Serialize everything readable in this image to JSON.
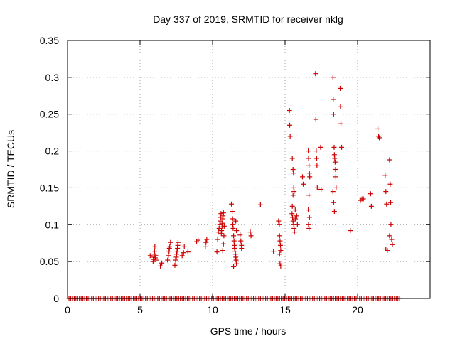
{
  "chart_data": {
    "type": "scatter",
    "title": "Day 337 of 2019, SRMTID for receiver nklg",
    "xlabel": "GPS time / hours",
    "ylabel": "SRMTID / TECUs",
    "xlim": [
      0,
      25
    ],
    "ylim": [
      0,
      0.35
    ],
    "xticks": [
      0,
      5,
      10,
      15,
      20
    ],
    "yticks": [
      0,
      0.05,
      0.1,
      0.15,
      0.2,
      0.25,
      0.3,
      0.35
    ],
    "ytick_labels": [
      "0",
      "0.05",
      "0.1",
      "0.15",
      "0.2",
      "0.25",
      "0.3",
      "0.35"
    ],
    "grid": true,
    "marker": "plus",
    "color": "#cc0000",
    "baseline": {
      "y": 0,
      "x_start": 0.1,
      "x_end": 22.9,
      "step": 0.12
    },
    "points": [
      [
        5.7,
        0.058
      ],
      [
        5.9,
        0.05
      ],
      [
        5.92,
        0.053
      ],
      [
        5.95,
        0.056
      ],
      [
        5.98,
        0.06
      ],
      [
        6.0,
        0.064
      ],
      [
        6.02,
        0.07
      ],
      [
        6.05,
        0.055
      ],
      [
        6.08,
        0.058
      ],
      [
        6.1,
        0.052
      ],
      [
        6.4,
        0.044
      ],
      [
        6.5,
        0.048
      ],
      [
        6.9,
        0.052
      ],
      [
        6.95,
        0.058
      ],
      [
        7.0,
        0.064
      ],
      [
        7.02,
        0.068
      ],
      [
        7.05,
        0.07
      ],
      [
        7.1,
        0.076
      ],
      [
        7.4,
        0.045
      ],
      [
        7.45,
        0.052
      ],
      [
        7.5,
        0.056
      ],
      [
        7.52,
        0.06
      ],
      [
        7.55,
        0.064
      ],
      [
        7.58,
        0.068
      ],
      [
        7.6,
        0.072
      ],
      [
        7.62,
        0.076
      ],
      [
        7.9,
        0.058
      ],
      [
        8.0,
        0.062
      ],
      [
        8.05,
        0.07
      ],
      [
        8.3,
        0.063
      ],
      [
        8.9,
        0.077
      ],
      [
        9.0,
        0.079
      ],
      [
        9.5,
        0.07
      ],
      [
        9.55,
        0.076
      ],
      [
        9.6,
        0.08
      ],
      [
        10.3,
        0.063
      ],
      [
        10.35,
        0.08
      ],
      [
        10.4,
        0.09
      ],
      [
        10.45,
        0.095
      ],
      [
        10.5,
        0.1
      ],
      [
        10.52,
        0.105
      ],
      [
        10.55,
        0.11
      ],
      [
        10.58,
        0.115
      ],
      [
        10.6,
        0.088
      ],
      [
        10.62,
        0.092
      ],
      [
        10.65,
        0.097
      ],
      [
        10.68,
        0.102
      ],
      [
        10.7,
        0.108
      ],
      [
        10.72,
        0.112
      ],
      [
        10.75,
        0.116
      ],
      [
        10.78,
        0.085
      ],
      [
        10.8,
        0.098
      ],
      [
        10.7,
        0.065
      ],
      [
        10.75,
        0.074
      ],
      [
        11.3,
        0.128
      ],
      [
        11.35,
        0.118
      ],
      [
        11.38,
        0.108
      ],
      [
        11.4,
        0.1
      ],
      [
        11.42,
        0.095
      ],
      [
        11.45,
        0.085
      ],
      [
        11.48,
        0.078
      ],
      [
        11.5,
        0.072
      ],
      [
        11.52,
        0.068
      ],
      [
        11.55,
        0.064
      ],
      [
        11.58,
        0.06
      ],
      [
        11.6,
        0.056
      ],
      [
        11.62,
        0.052
      ],
      [
        11.65,
        0.047
      ],
      [
        11.45,
        0.043
      ],
      [
        11.6,
        0.105
      ],
      [
        11.65,
        0.092
      ],
      [
        11.9,
        0.086
      ],
      [
        11.95,
        0.078
      ],
      [
        12.0,
        0.072
      ],
      [
        12.0,
        0.068
      ],
      [
        12.6,
        0.09
      ],
      [
        12.65,
        0.085
      ],
      [
        13.3,
        0.127
      ],
      [
        14.2,
        0.064
      ],
      [
        14.55,
        0.105
      ],
      [
        14.6,
        0.1
      ],
      [
        14.62,
        0.085
      ],
      [
        14.65,
        0.078
      ],
      [
        14.68,
        0.072
      ],
      [
        14.7,
        0.065
      ],
      [
        14.62,
        0.06
      ],
      [
        14.65,
        0.047
      ],
      [
        14.7,
        0.044
      ],
      [
        15.3,
        0.255
      ],
      [
        15.32,
        0.235
      ],
      [
        15.35,
        0.22
      ],
      [
        15.5,
        0.19
      ],
      [
        15.55,
        0.175
      ],
      [
        15.58,
        0.17
      ],
      [
        15.6,
        0.15
      ],
      [
        15.62,
        0.145
      ],
      [
        15.55,
        0.14
      ],
      [
        15.5,
        0.125
      ],
      [
        15.48,
        0.115
      ],
      [
        15.52,
        0.11
      ],
      [
        15.55,
        0.105
      ],
      [
        15.6,
        0.1
      ],
      [
        15.62,
        0.095
      ],
      [
        15.65,
        0.09
      ],
      [
        15.7,
        0.12
      ],
      [
        15.72,
        0.108
      ],
      [
        15.8,
        0.112
      ],
      [
        15.85,
        0.1
      ],
      [
        16.2,
        0.165
      ],
      [
        16.25,
        0.155
      ],
      [
        16.6,
        0.2
      ],
      [
        16.62,
        0.19
      ],
      [
        16.65,
        0.18
      ],
      [
        16.68,
        0.17
      ],
      [
        16.7,
        0.165
      ],
      [
        16.65,
        0.14
      ],
      [
        16.6,
        0.12
      ],
      [
        16.62,
        0.1
      ],
      [
        16.65,
        0.095
      ],
      [
        16.68,
        0.11
      ],
      [
        17.1,
        0.305
      ],
      [
        17.12,
        0.243
      ],
      [
        17.15,
        0.2
      ],
      [
        17.18,
        0.19
      ],
      [
        17.2,
        0.18
      ],
      [
        17.22,
        0.15
      ],
      [
        17.45,
        0.205
      ],
      [
        17.48,
        0.148
      ],
      [
        18.3,
        0.3
      ],
      [
        18.32,
        0.27
      ],
      [
        18.35,
        0.25
      ],
      [
        18.38,
        0.205
      ],
      [
        18.4,
        0.195
      ],
      [
        18.42,
        0.19
      ],
      [
        18.45,
        0.185
      ],
      [
        18.48,
        0.175
      ],
      [
        18.5,
        0.165
      ],
      [
        18.52,
        0.15
      ],
      [
        18.3,
        0.145
      ],
      [
        18.35,
        0.13
      ],
      [
        18.4,
        0.118
      ],
      [
        18.8,
        0.285
      ],
      [
        18.82,
        0.26
      ],
      [
        18.85,
        0.237
      ],
      [
        18.9,
        0.205
      ],
      [
        19.5,
        0.092
      ],
      [
        20.2,
        0.133
      ],
      [
        20.3,
        0.135
      ],
      [
        20.4,
        0.135
      ],
      [
        20.9,
        0.142
      ],
      [
        20.95,
        0.125
      ],
      [
        21.4,
        0.23
      ],
      [
        21.45,
        0.22
      ],
      [
        21.5,
        0.218
      ],
      [
        21.9,
        0.167
      ],
      [
        21.95,
        0.145
      ],
      [
        22.0,
        0.128
      ],
      [
        22.05,
        0.065
      ],
      [
        21.95,
        0.067
      ],
      [
        22.2,
        0.188
      ],
      [
        22.25,
        0.155
      ],
      [
        22.28,
        0.13
      ],
      [
        22.3,
        0.1
      ],
      [
        22.2,
        0.085
      ],
      [
        22.35,
        0.08
      ],
      [
        22.4,
        0.073
      ]
    ]
  }
}
